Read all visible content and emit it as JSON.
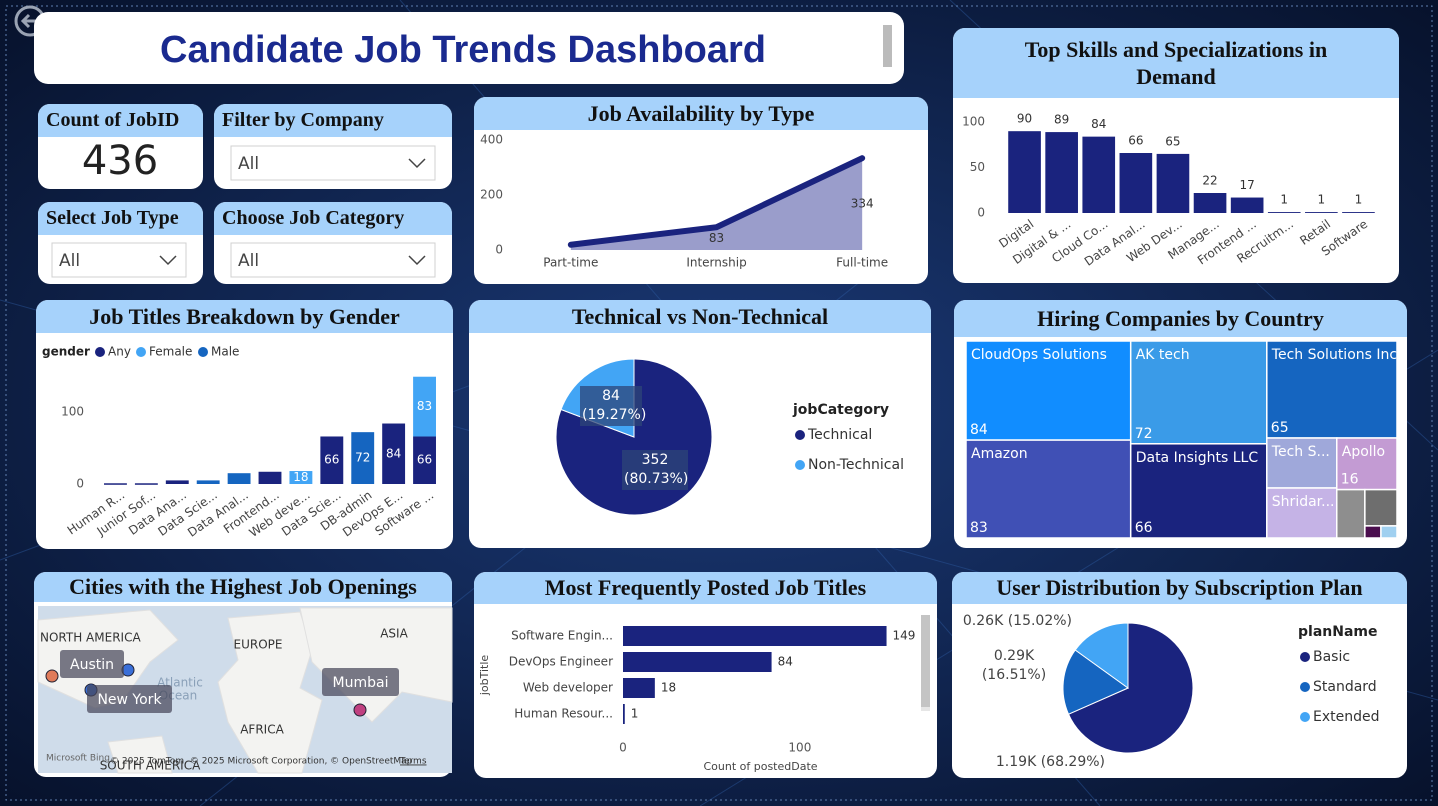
{
  "header": {
    "title": "Candidate Job Trends Dashboard"
  },
  "card": {
    "label": "Count of JobID",
    "value": 436
  },
  "slicers": [
    {
      "label": "Filter by Company",
      "value": "All"
    },
    {
      "label": "Select Job Type",
      "value": "All"
    },
    {
      "label": "Choose Job Category",
      "value": "All"
    }
  ],
  "chart_data": [
    {
      "type": "area",
      "title": "Job Availability by Type",
      "categories": [
        "Part-time",
        "Internship",
        "Full-time"
      ],
      "values": [
        19,
        83,
        334
      ],
      "value_labels": [
        null,
        "83",
        "334"
      ],
      "color": "#1a237e",
      "area_color": "#9a9dcb",
      "ylim": [
        0,
        400
      ],
      "yticks": [
        0,
        200,
        400
      ]
    },
    {
      "type": "bar",
      "title": "Top Skills and Specializations in Demand",
      "categories": [
        "Digital",
        "Digital & ...",
        "Cloud Co...",
        "Data Anal...",
        "Web Dev...",
        "Manage...",
        "Frontend ...",
        "Recruitm...",
        "Retail",
        "Software"
      ],
      "values": [
        90,
        89,
        84,
        66,
        65,
        22,
        17,
        1,
        1,
        1
      ],
      "color": "#1a237e",
      "ylim": [
        0,
        110
      ],
      "yticks": [
        0,
        50,
        100
      ]
    },
    {
      "type": "stacked",
      "title": "Job Titles Breakdown by Gender",
      "legend_title": "gender",
      "categories": [
        "Human R...",
        "Junior Sof...",
        "Data Ana...",
        "Data Scie...",
        "Data Anal...",
        "Frontend...",
        "Web deve...",
        "Data Scie...",
        "DB-admin",
        "DevOps E...",
        "Software ..."
      ],
      "series": [
        {
          "name": "Any",
          "color": "#1a237e",
          "values": [
            1,
            1,
            5,
            null,
            null,
            17,
            null,
            66,
            null,
            84,
            66
          ],
          "value_labels": [
            null,
            null,
            null,
            null,
            null,
            null,
            null,
            "66",
            null,
            "84",
            "66"
          ]
        },
        {
          "name": "Female",
          "color": "#42a5f5",
          "values": [
            null,
            null,
            null,
            null,
            null,
            null,
            18,
            null,
            null,
            null,
            83
          ],
          "value_labels": [
            null,
            null,
            null,
            null,
            null,
            null,
            "18",
            null,
            null,
            null,
            "83"
          ]
        },
        {
          "name": "Male",
          "color": "#1565c0",
          "values": [
            null,
            null,
            null,
            5,
            15,
            null,
            null,
            null,
            72,
            null,
            null
          ],
          "value_labels": [
            null,
            null,
            null,
            null,
            null,
            null,
            null,
            null,
            "72",
            null,
            null
          ]
        }
      ],
      "ylim": [
        0,
        150
      ],
      "yticks": [
        0,
        100
      ]
    },
    {
      "type": "pie",
      "title": "Technical vs Non-Technical",
      "legend_title": "jobCategory",
      "categories": [
        "Technical",
        "Non-Technical"
      ],
      "values": [
        352,
        84
      ],
      "value_labels": [
        "352 (80.73%)",
        "84 (19.27%)"
      ],
      "colors": [
        "#1a237e",
        "#42a5f5"
      ]
    },
    {
      "type": "treemap",
      "title": "Hiring Companies by Country",
      "categories": [
        "CloudOps Solutions",
        "Amazon",
        "AK tech",
        "Data Insights LLC",
        "Tech Solutions Inc.",
        "Tech S...",
        "Shridar...",
        "Apollo",
        null,
        null,
        null,
        null
      ],
      "values": [
        84,
        83,
        72,
        66,
        65,
        18,
        18,
        16,
        7,
        6,
        1,
        1
      ],
      "value_labels": [
        "84",
        "83",
        "72",
        "66",
        "65",
        null,
        null,
        "16",
        null,
        null,
        null,
        null
      ],
      "colors": [
        "#118dff",
        "#4050b5",
        "#3a9be8",
        "#1a237e",
        "#1565c0",
        "#9fa8da",
        "#c5b3e6",
        "#c39bd3",
        "#8e8e8e",
        "#6e6e6e",
        "#4a0e4e",
        "#a0d0f0"
      ]
    },
    {
      "type": "map",
      "title": "Cities with the Highest Job Openings",
      "regions": [
        "NORTH AMERICA",
        "EUROPE",
        "ASIA",
        "AFRICA",
        "SOUTH AMERICA",
        "Atlantic",
        "Ocean"
      ],
      "cities": [
        "Austin",
        "New York",
        "Mumbai"
      ],
      "brand": "Microsoft Bing",
      "attribution": "© 2025 TomTom, © 2025 Microsoft Corporation, © OpenStreetMap",
      "terms": "Terms"
    },
    {
      "type": "hbar",
      "title": "Most Frequently Posted Job Titles",
      "categories": [
        "Software Engin...",
        "DevOps Engineer",
        "Web developer",
        "Human Resour..."
      ],
      "values": [
        149,
        84,
        18,
        1
      ],
      "color": "#1a237e",
      "xlim": [
        0,
        160
      ],
      "xticks": [
        0,
        100
      ],
      "xlabel": "Count of postedDate",
      "ylabel": "jobTitle"
    },
    {
      "type": "pie",
      "title": "User Distribution by Subscription Plan",
      "legend_title": "planName",
      "categories": [
        "Basic",
        "Standard",
        "Extended"
      ],
      "values": [
        1190,
        288,
        262
      ],
      "value_labels": [
        "1.19K (68.29%)",
        "0.29K (16.51%)",
        "0.26K (15.02%)"
      ],
      "colors": [
        "#1a237e",
        "#1565c0",
        "#42a5f5"
      ]
    }
  ]
}
